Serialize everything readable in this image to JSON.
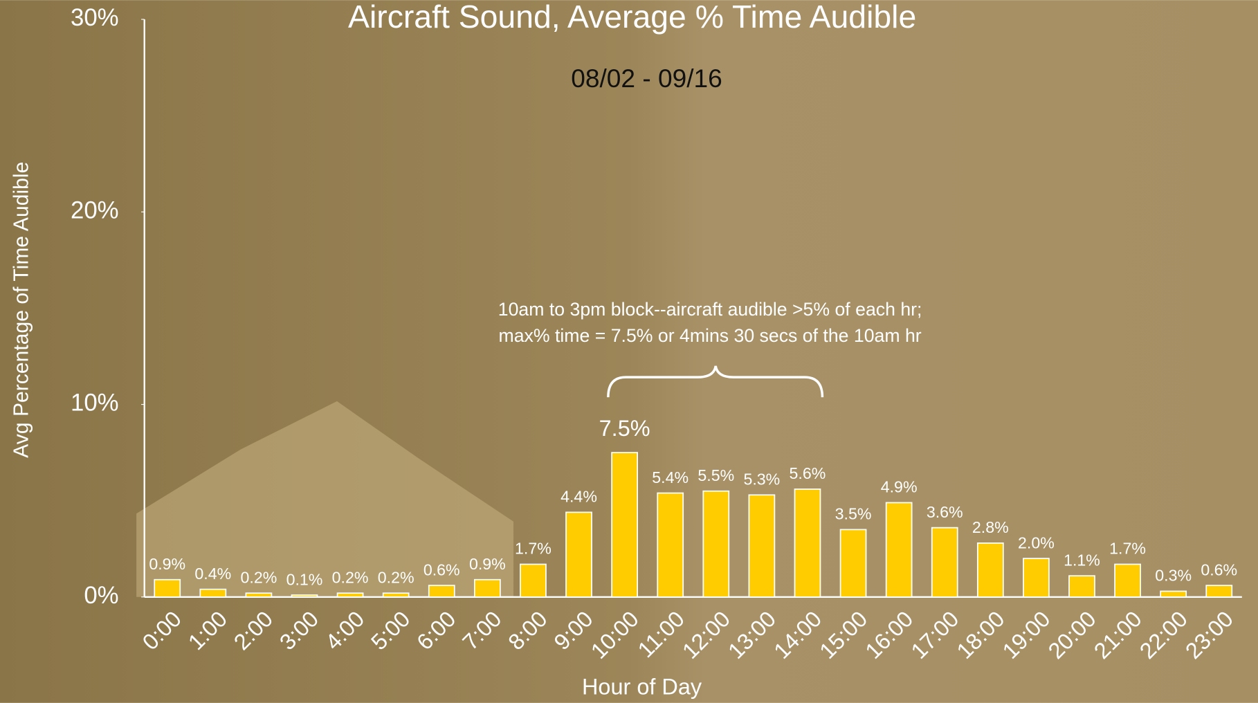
{
  "chart_data": {
    "type": "bar",
    "title": "Aircraft Sound, Average % Time Audible",
    "subtitle": "08/02 - 09/16",
    "x_label": "Hour of Day",
    "y_label": "Avg Percentage of Time Audible",
    "annotation": [
      "10am to 3pm block--aircraft audible >5% of each hr;",
      "max% time = 7.5% or 4mins 30 secs of the 10am hr"
    ],
    "categories": [
      "0:00",
      "1:00",
      "2:00",
      "3:00",
      "4:00",
      "5:00",
      "6:00",
      "7:00",
      "8:00",
      "9:00",
      "10:00",
      "11:00",
      "12:00",
      "13:00",
      "14:00",
      "15:00",
      "16:00",
      "17:00",
      "18:00",
      "19:00",
      "20:00",
      "21:00",
      "22:00",
      "23:00"
    ],
    "values": [
      0.9,
      0.4,
      0.2,
      0.1,
      0.2,
      0.2,
      0.6,
      0.9,
      1.7,
      4.4,
      7.5,
      5.4,
      5.5,
      5.3,
      5.6,
      3.5,
      4.9,
      3.6,
      2.8,
      2.0,
      1.1,
      1.7,
      0.3,
      0.6
    ],
    "value_labels": [
      "0.9%",
      "0.4%",
      "0.2%",
      "0.1%",
      "0.2%",
      "0.2%",
      "0.6%",
      "0.9%",
      "1.7%",
      "4.4%",
      "7.5%",
      "5.4%",
      "5.5%",
      "5.3%",
      "5.6%",
      "3.5%",
      "4.9%",
      "3.6%",
      "2.8%",
      "2.0%",
      "1.1%",
      "1.7%",
      "0.3%",
      "0.6%"
    ],
    "color": "#ffcc00",
    "ylim": [
      0,
      30
    ],
    "yticks": [
      {
        "value": 0,
        "label": "0%"
      },
      {
        "value": 10,
        "label": "10%"
      },
      {
        "value": 20,
        "label": "20%"
      },
      {
        "value": 30,
        "label": "30%"
      }
    ],
    "grid": false
  }
}
